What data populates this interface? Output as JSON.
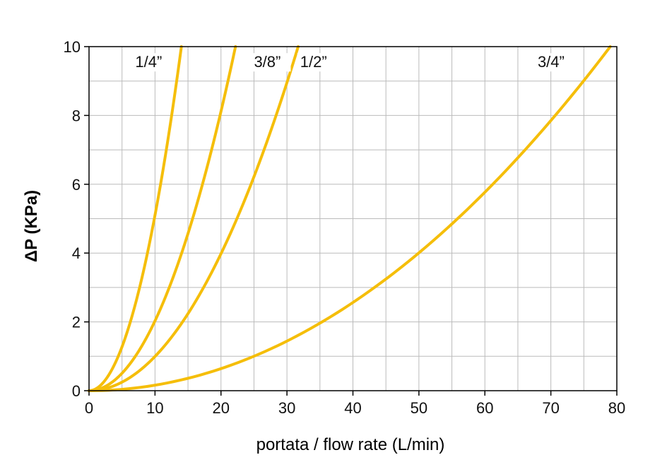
{
  "chart_data": {
    "type": "line",
    "xlabel": "portata / flow rate (L/min)",
    "ylabel": "ΔP (KPa)",
    "xlim": [
      0,
      80
    ],
    "ylim": [
      0,
      10
    ],
    "x_ticks": [
      0,
      10,
      20,
      30,
      40,
      50,
      60,
      70,
      80
    ],
    "y_ticks": [
      0,
      2,
      4,
      6,
      8,
      10
    ],
    "grid": true,
    "grid_minor_x": 5,
    "grid_minor_y": 1,
    "colors": {
      "curve": "#F5BE0A",
      "axis_title": "#1E3A8A",
      "grid": "#BBBBBB",
      "axis": "#000000"
    },
    "series": [
      {
        "name": "1/4”",
        "label_at": [
          7,
          9.4
        ],
        "x": [
          0,
          2,
          4,
          6,
          8,
          10,
          12,
          14
        ],
        "y": [
          0,
          0.2,
          0.82,
          1.84,
          3.27,
          5.1,
          7.35,
          10
        ]
      },
      {
        "name": "3/8”",
        "label_at": [
          25,
          9.4
        ],
        "x": [
          0,
          4,
          8,
          12,
          16,
          20,
          22.2
        ],
        "y": [
          0,
          0.32,
          1.3,
          2.92,
          5.19,
          8.12,
          10
        ]
      },
      {
        "name": "1/2”",
        "label_at": [
          32,
          9.4
        ],
        "x": [
          0,
          5,
          10,
          15,
          20,
          25,
          30,
          31.7
        ],
        "y": [
          0,
          0.25,
          1.0,
          2.24,
          3.98,
          6.22,
          8.96,
          10
        ]
      },
      {
        "name": "3/4”",
        "label_at": [
          68,
          9.4
        ],
        "x": [
          0,
          10,
          20,
          30,
          40,
          50,
          60,
          70,
          79
        ],
        "y": [
          0,
          0.16,
          0.64,
          1.44,
          2.56,
          4.0,
          5.76,
          7.84,
          10
        ]
      }
    ]
  }
}
